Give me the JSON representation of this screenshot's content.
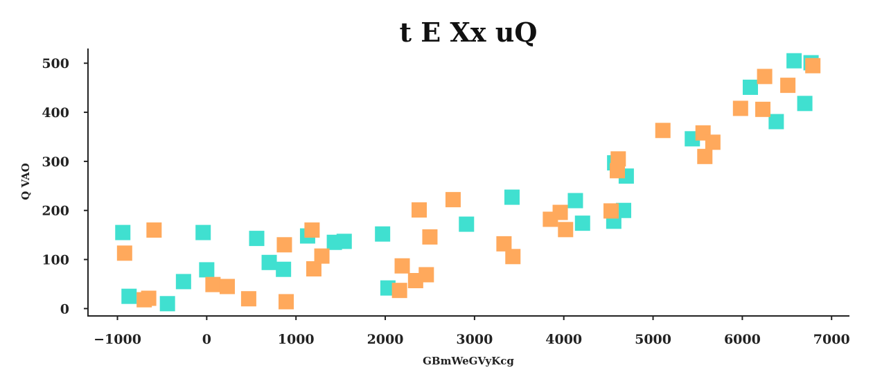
{
  "chart_data": {
    "type": "scatter",
    "title": "t E Xx uQ",
    "xlabel": "GBmWeGVyKcg",
    "ylabel": "Q VAO",
    "xlim": [
      -1330,
      7200
    ],
    "ylim": [
      -15,
      530
    ],
    "x_ticks": [
      -1000,
      0,
      1000,
      2000,
      3000,
      4000,
      5000,
      6000,
      7000
    ],
    "y_ticks": [
      0,
      100,
      200,
      300,
      400,
      500
    ],
    "x_tick_labels": [
      "−1000",
      "0",
      "1000",
      "2000",
      "3000",
      "4000",
      "5000",
      "6000",
      "7000"
    ],
    "y_tick_labels": [
      "0",
      "100",
      "200",
      "300",
      "400",
      "500"
    ],
    "grid": false,
    "series": [
      {
        "color": "#40e0d0",
        "points": [
          [
            -940,
            155
          ],
          [
            -870,
            25
          ],
          [
            -440,
            10
          ],
          [
            -260,
            55
          ],
          [
            -40,
            155
          ],
          [
            0,
            79
          ],
          [
            560,
            143
          ],
          [
            700,
            94
          ],
          [
            860,
            80
          ],
          [
            1130,
            148
          ],
          [
            1430,
            135
          ],
          [
            1540,
            137
          ],
          [
            1970,
            152
          ],
          [
            2030,
            42
          ],
          [
            2910,
            172
          ],
          [
            3420,
            227
          ],
          [
            4130,
            220
          ],
          [
            4210,
            174
          ],
          [
            4560,
            178
          ],
          [
            4570,
            297
          ],
          [
            4670,
            200
          ],
          [
            4700,
            270
          ],
          [
            5440,
            346
          ],
          [
            6090,
            451
          ],
          [
            6380,
            381
          ],
          [
            6580,
            505
          ],
          [
            6700,
            418
          ],
          [
            6770,
            501
          ]
        ]
      },
      {
        "color": "#ffa95c",
        "points": [
          [
            -920,
            113
          ],
          [
            -700,
            18
          ],
          [
            -650,
            21
          ],
          [
            -590,
            160
          ],
          [
            70,
            49
          ],
          [
            230,
            45
          ],
          [
            470,
            20
          ],
          [
            870,
            130
          ],
          [
            890,
            14
          ],
          [
            1180,
            160
          ],
          [
            1200,
            81
          ],
          [
            1290,
            107
          ],
          [
            2160,
            37
          ],
          [
            2190,
            87
          ],
          [
            2340,
            57
          ],
          [
            2380,
            201
          ],
          [
            2460,
            69
          ],
          [
            2500,
            146
          ],
          [
            2760,
            222
          ],
          [
            3330,
            132
          ],
          [
            3430,
            106
          ],
          [
            3850,
            182
          ],
          [
            3960,
            196
          ],
          [
            4020,
            161
          ],
          [
            4530,
            199
          ],
          [
            4600,
            281
          ],
          [
            4610,
            305
          ],
          [
            5110,
            363
          ],
          [
            5560,
            358
          ],
          [
            5580,
            310
          ],
          [
            5670,
            339
          ],
          [
            5980,
            408
          ],
          [
            6230,
            406
          ],
          [
            6250,
            473
          ],
          [
            6510,
            455
          ],
          [
            6790,
            495
          ]
        ]
      }
    ]
  }
}
